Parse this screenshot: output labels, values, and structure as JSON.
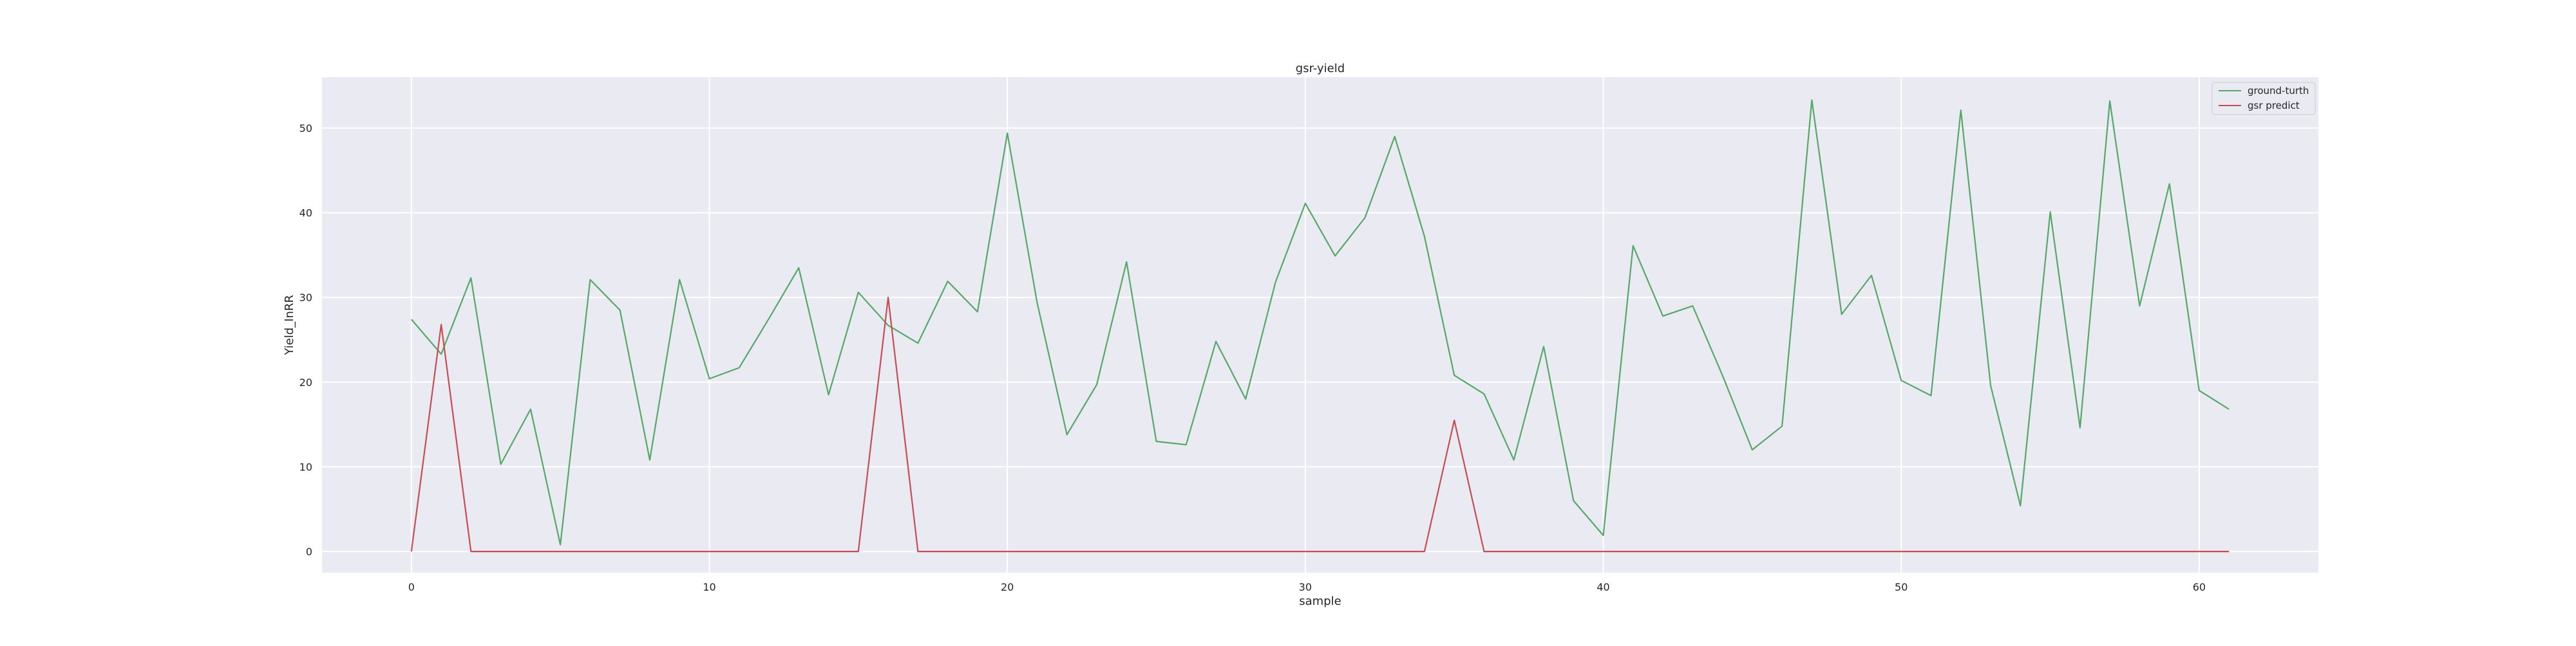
{
  "chart_data": {
    "type": "line",
    "title": "gsr-yield",
    "xlabel": "sample",
    "ylabel": "Yield_InRR",
    "xlim": [
      -3,
      64
    ],
    "ylim": [
      -2.5,
      56
    ],
    "xticks": [
      0,
      10,
      20,
      30,
      40,
      50,
      60
    ],
    "yticks": [
      0,
      10,
      20,
      30,
      40,
      50
    ],
    "grid": true,
    "legend_position": "top-right",
    "x": [
      0,
      1,
      2,
      3,
      4,
      5,
      6,
      7,
      8,
      9,
      10,
      11,
      12,
      13,
      14,
      15,
      16,
      17,
      18,
      19,
      20,
      21,
      22,
      23,
      24,
      25,
      26,
      27,
      28,
      29,
      30,
      31,
      32,
      33,
      34,
      35,
      36,
      37,
      38,
      39,
      40,
      41,
      42,
      43,
      44,
      45,
      46,
      47,
      48,
      49,
      50,
      51,
      52,
      53,
      54,
      55,
      56,
      57,
      58,
      59,
      60,
      61
    ],
    "series": [
      {
        "name": "ground-turth",
        "color": "#55a868",
        "values": [
          27.4,
          23.3,
          32.3,
          10.3,
          16.8,
          0.8,
          32.1,
          28.5,
          10.8,
          32.1,
          20.4,
          21.7,
          27.5,
          33.5,
          18.5,
          30.6,
          26.7,
          24.6,
          31.9,
          28.3,
          49.4,
          29.4,
          13.8,
          19.7,
          34.2,
          13.0,
          12.6,
          24.8,
          18.0,
          31.8,
          41.1,
          34.9,
          39.4,
          49.0,
          37.2,
          20.8,
          18.6,
          10.8,
          24.2,
          6.0,
          1.9,
          36.1,
          27.8,
          29.0,
          20.8,
          12.0,
          14.8,
          53.3,
          28.0,
          32.6,
          20.2,
          18.4,
          52.1,
          19.6,
          5.4,
          40.1,
          14.6,
          53.2,
          29.0,
          43.4,
          19.0,
          16.8
        ]
      },
      {
        "name": "gsr predict",
        "color": "#c44e52",
        "values": [
          0,
          26.8,
          0,
          0,
          0,
          0,
          0,
          0,
          0,
          0,
          0,
          0,
          0,
          0,
          0,
          0,
          30.0,
          0,
          0,
          0,
          0,
          0,
          0,
          0,
          0,
          0,
          0,
          0,
          0,
          0,
          0,
          0,
          0,
          0,
          0,
          15.5,
          0,
          0,
          0,
          0,
          0,
          0,
          0,
          0,
          0,
          0,
          0,
          0,
          0,
          0,
          0,
          0,
          0,
          0,
          0,
          0,
          0,
          0,
          0,
          0,
          0,
          0
        ]
      }
    ]
  }
}
